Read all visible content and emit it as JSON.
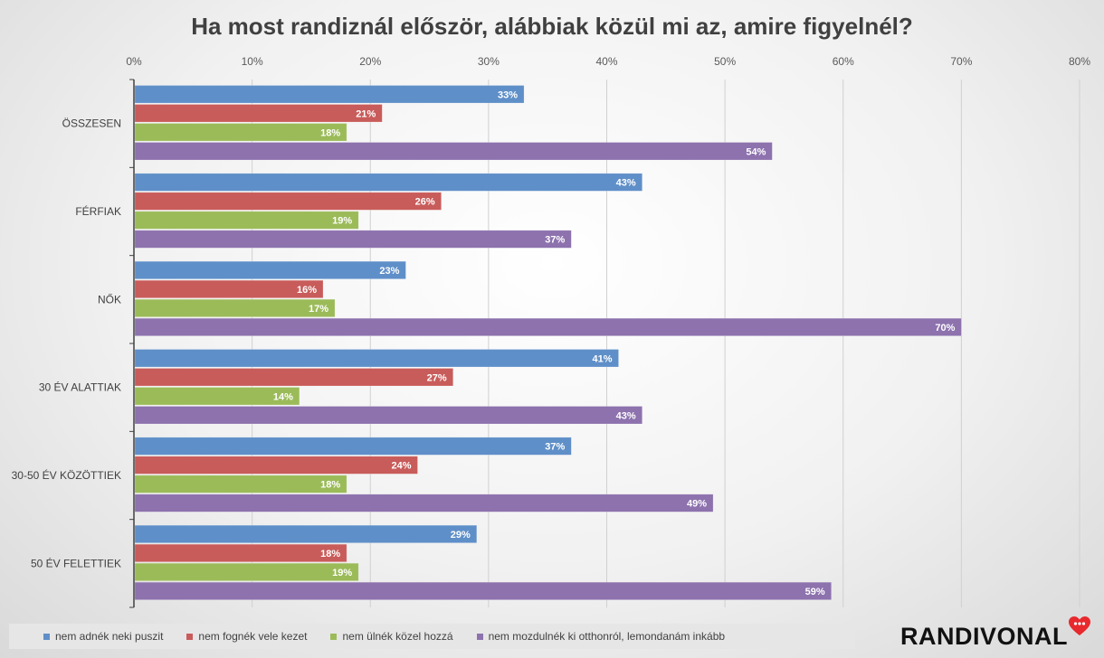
{
  "title": "Ha most randiznál először, alábbiak közül mi az, amire figyelnél?",
  "colors": {
    "series": [
      "#5f8fc8",
      "#c85c5a",
      "#9bbb59",
      "#8d72ae"
    ],
    "grid": "#d0d0d0",
    "axis": "#404040"
  },
  "logo": {
    "text": "RANDIVONAL",
    "icon": "heart-chat-icon",
    "color": "#e8292d"
  },
  "chart_data": {
    "type": "bar",
    "orientation": "horizontal",
    "title": "Ha most randiznál először, alábbiak közül mi az, amire figyelnél?",
    "xlim": [
      0,
      80
    ],
    "x_ticks": [
      "0%",
      "10%",
      "20%",
      "30%",
      "40%",
      "50%",
      "60%",
      "70%",
      "80%"
    ],
    "x_tick_values": [
      0,
      10,
      20,
      30,
      40,
      50,
      60,
      70,
      80
    ],
    "grid": true,
    "legend_position": "bottom",
    "categories": [
      "ÖSSZESEN",
      "FÉRFIAK",
      "NŐK",
      "30 ÉV ALATTIAK",
      "30-50 ÉV KÖZÖTTIEK",
      "50 ÉV FELETTIEK"
    ],
    "series": [
      {
        "name": "nem adnék neki puszit",
        "values": [
          33,
          43,
          23,
          41,
          37,
          29
        ],
        "labels": [
          "33%",
          "43%",
          "23%",
          "41%",
          "37%",
          "29%"
        ]
      },
      {
        "name": "nem fognék vele kezet",
        "values": [
          21,
          26,
          16,
          27,
          24,
          18
        ],
        "labels": [
          "21%",
          "26%",
          "16%",
          "27%",
          "24%",
          "18%"
        ]
      },
      {
        "name": "nem ülnék közel hozzá",
        "values": [
          18,
          19,
          17,
          14,
          18,
          19
        ],
        "labels": [
          "18%",
          "19%",
          "17%",
          "14%",
          "18%",
          "19%"
        ]
      },
      {
        "name": "nem mozdulnék ki otthonról, lemondanám inkább",
        "values": [
          54,
          37,
          70,
          43,
          49,
          59
        ],
        "labels": [
          "54%",
          "37%",
          "70%",
          "43%",
          "49%",
          "59%"
        ]
      }
    ]
  }
}
